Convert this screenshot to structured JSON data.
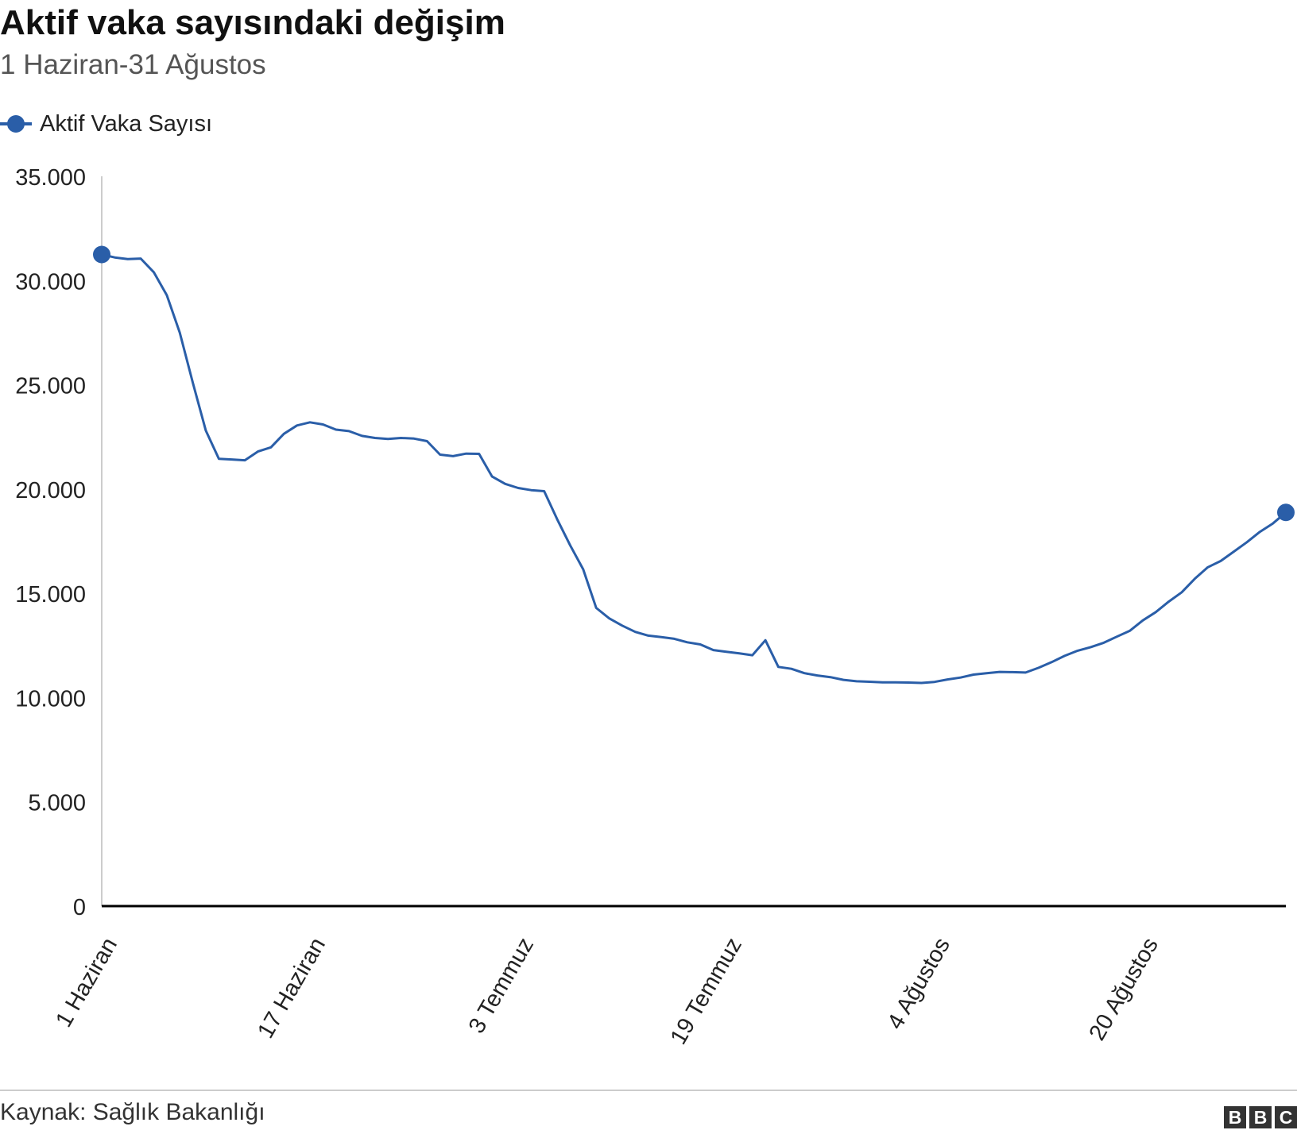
{
  "header": {
    "title": "Aktif vaka sayısındaki değişim",
    "subtitle": "1 Haziran-31 Ağustos"
  },
  "legend": {
    "label": "Aktif Vaka Sayısı",
    "placement": "top-left"
  },
  "footer": {
    "source": "Kaynak: Sağlık Bakanlığı",
    "logo_letters": [
      "B",
      "B",
      "C"
    ]
  },
  "colors": {
    "series": "#2a5ea8",
    "axis": "#000000",
    "gridline": "#cccccc",
    "text": "#222222"
  },
  "chart_data": {
    "type": "line",
    "title": "Aktif vaka sayısındaki değişim",
    "subtitle": "1 Haziran-31 Ağustos",
    "xlabel": "",
    "ylabel": "",
    "ylim": [
      0,
      35000
    ],
    "yticks": [
      0,
      5000,
      10000,
      15000,
      20000,
      25000,
      30000,
      35000
    ],
    "ytick_labels": [
      "0",
      "5.000",
      "10.000",
      "15.000",
      "20.000",
      "25.000",
      "30.000",
      "35.000"
    ],
    "xticks": [
      "1 Haziran",
      "17 Haziran",
      "3 Temmuz",
      "19 Temmuz",
      "4 Ağustos",
      "20 Ağustos"
    ],
    "xtick_positions": [
      0,
      16,
      32,
      48,
      64,
      80
    ],
    "x_start": "1 Haziran",
    "x_end": "31 Ağustos",
    "grid": false,
    "series": [
      {
        "name": "Aktif Vaka Sayısı",
        "marker_at_ends": true,
        "values": [
          31248,
          31108,
          31026,
          31054,
          30400,
          29300,
          27500,
          25100,
          22800,
          21450,
          21420,
          21380,
          21800,
          22000,
          22650,
          23050,
          23200,
          23100,
          22850,
          22780,
          22550,
          22450,
          22400,
          22450,
          22420,
          22300,
          21650,
          21580,
          21700,
          21690,
          20600,
          20250,
          20050,
          19950,
          19900,
          18550,
          17300,
          16150,
          14300,
          13800,
          13450,
          13150,
          12970,
          12900,
          12820,
          12650,
          12550,
          12280,
          12200,
          12120,
          12030,
          12750,
          11470,
          11380,
          11170,
          11060,
          10980,
          10850,
          10780,
          10760,
          10730,
          10730,
          10720,
          10700,
          10750,
          10870,
          10960,
          11100,
          11170,
          11230,
          11220,
          11200,
          11430,
          11700,
          12000,
          12250,
          12420,
          12630,
          12920,
          13200,
          13700,
          14100,
          14600,
          15050,
          15700,
          16250,
          16550,
          17000,
          17450,
          17950,
          18350,
          18880
        ]
      }
    ]
  }
}
